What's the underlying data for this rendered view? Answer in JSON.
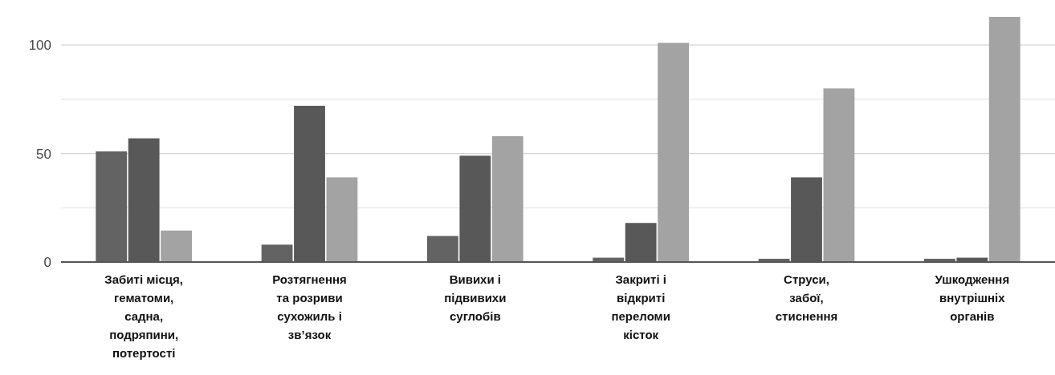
{
  "chart_data": {
    "type": "bar",
    "categories": [
      "Забиті місця, гематоми, садна, подряпини, потертості",
      "Розтягнення та розриви сухожиль і зв’язок",
      "Вивихи і підвивихи суглобів",
      "Закриті і відкриті переломи кісток",
      "Струси, забої, стиснення",
      "Ушкодження внутрішніх органів"
    ],
    "series": [
      {
        "color": "#636363",
        "values": [
          51,
          8,
          12,
          2,
          1.5,
          1.5
        ]
      },
      {
        "color": "#585858",
        "values": [
          57,
          72,
          49,
          18,
          39,
          2
        ]
      },
      {
        "color": "#a3a3a3",
        "values": [
          14.5,
          39,
          58,
          101,
          80,
          113
        ]
      }
    ],
    "ylim": [
      0,
      113
    ],
    "yticks": [
      0,
      {
        "value": 25,
        "label": null
      },
      50,
      {
        "value": 75,
        "label": null
      },
      100
    ],
    "grid": "y"
  }
}
